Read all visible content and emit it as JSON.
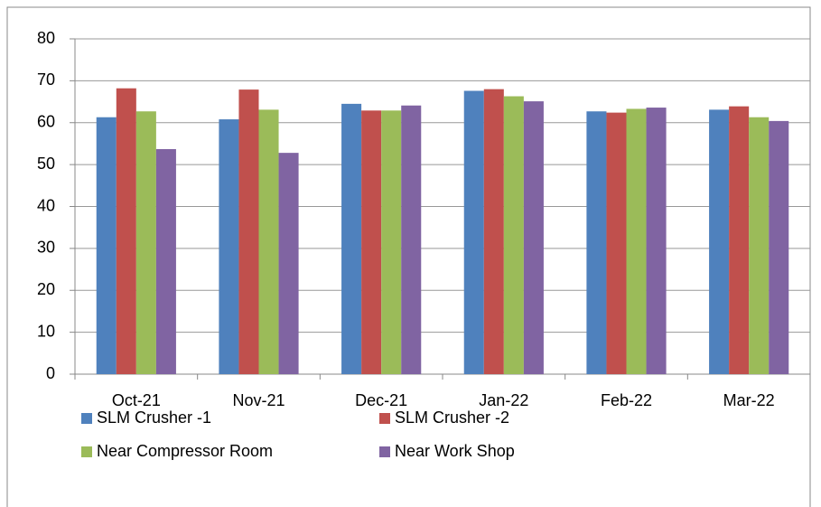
{
  "chart_data": {
    "type": "bar",
    "categories": [
      "Oct-21",
      "Nov-21",
      "Dec-21",
      "Jan-22",
      "Feb-22",
      "Mar-22"
    ],
    "series": [
      {
        "name": "SLM Crusher -1",
        "color": "#4f81bd",
        "values": [
          61.3,
          60.8,
          64.5,
          67.6,
          62.7,
          63.1
        ]
      },
      {
        "name": "SLM Crusher -2",
        "color": "#c0504d",
        "values": [
          68.2,
          67.9,
          62.9,
          68.0,
          62.4,
          63.9
        ]
      },
      {
        "name": "Near Compressor Room",
        "color": "#9bbb59",
        "values": [
          62.7,
          63.1,
          62.9,
          66.3,
          63.3,
          61.3
        ]
      },
      {
        "name": "Near Work Shop",
        "color": "#8064a2",
        "values": [
          53.7,
          52.8,
          64.1,
          65.1,
          63.6,
          60.4
        ]
      }
    ],
    "ylim": [
      0,
      80
    ],
    "yticks": [
      0,
      10,
      20,
      30,
      40,
      50,
      60,
      70,
      80
    ],
    "grid": true
  }
}
